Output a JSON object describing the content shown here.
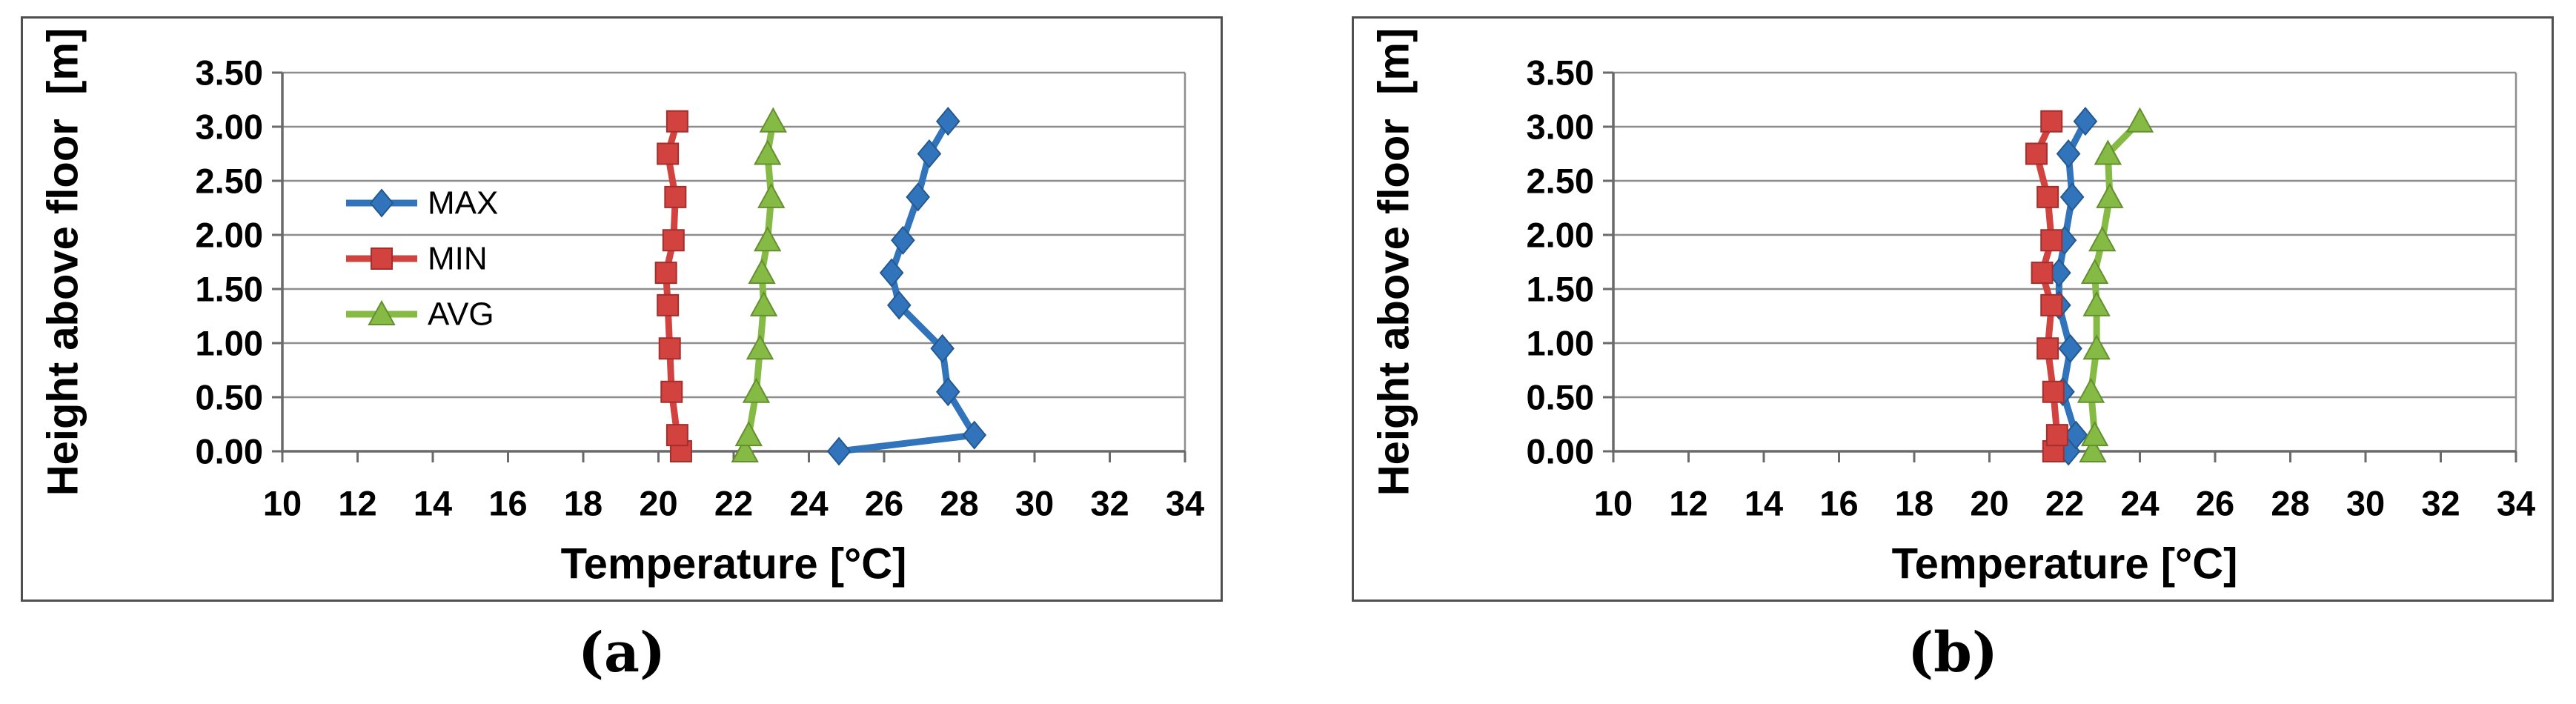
{
  "captions": {
    "a": "(a)",
    "b": "(b)"
  },
  "colors": {
    "max": "#3274BB",
    "max_edge": "#24598F",
    "min": "#D2423F",
    "min_edge": "#A32F2D",
    "avg": "#85BB44",
    "avg_edge": "#648F2F",
    "grid": "#8E8E8E",
    "axis": "#6A6A6A",
    "text": "#000000",
    "panel_border": "#4F4F4F"
  },
  "chart_data": [
    {
      "panel": "a",
      "type": "line",
      "xlabel": "Temperature [°C]",
      "ylabel": "Height above floor  [m]",
      "xlim": [
        10,
        34
      ],
      "ylim": [
        0,
        3.5
      ],
      "x_ticks": [
        10,
        12,
        14,
        16,
        18,
        20,
        22,
        24,
        26,
        28,
        30,
        32,
        34
      ],
      "y_ticks": [
        0,
        0.5,
        1,
        1.5,
        2,
        2.5,
        3,
        3.5
      ],
      "y_tick_labels": [
        "0.00",
        "0.50",
        "1.00",
        "1.50",
        "2.00",
        "2.50",
        "3.00",
        "3.50"
      ],
      "grid": "horizontal",
      "legend": {
        "show": true,
        "position": "left-center"
      },
      "heights": [
        0.0,
        0.15,
        0.55,
        0.95,
        1.35,
        1.65,
        1.95,
        2.35,
        2.75,
        3.05
      ],
      "series": [
        {
          "name": "MAX",
          "marker": "diamond",
          "color_key": "max",
          "temps": [
            24.8,
            28.4,
            27.7,
            27.55,
            26.4,
            26.2,
            26.5,
            26.9,
            27.2,
            27.7
          ]
        },
        {
          "name": "MIN",
          "marker": "square",
          "color_key": "min",
          "temps": [
            20.6,
            20.5,
            20.35,
            20.3,
            20.25,
            20.2,
            20.4,
            20.45,
            20.25,
            20.5
          ]
        },
        {
          "name": "AVG",
          "marker": "triangle",
          "color_key": "avg",
          "temps": [
            22.3,
            22.4,
            22.6,
            22.7,
            22.8,
            22.75,
            22.9,
            23.0,
            22.9,
            23.05
          ]
        }
      ]
    },
    {
      "panel": "b",
      "type": "line",
      "xlabel": "Temperature [°C]",
      "ylabel": "Height above floor  [m]",
      "xlim": [
        10,
        34
      ],
      "ylim": [
        0,
        3.5
      ],
      "x_ticks": [
        10,
        12,
        14,
        16,
        18,
        20,
        22,
        24,
        26,
        28,
        30,
        32,
        34
      ],
      "y_ticks": [
        0,
        0.5,
        1,
        1.5,
        2,
        2.5,
        3,
        3.5
      ],
      "y_tick_labels": [
        "0.00",
        "0.50",
        "1.00",
        "1.50",
        "2.00",
        "2.50",
        "3.00",
        "3.50"
      ],
      "grid": "horizontal",
      "legend": {
        "show": false
      },
      "heights": [
        0.0,
        0.15,
        0.55,
        0.95,
        1.35,
        1.65,
        1.95,
        2.35,
        2.75,
        3.05
      ],
      "series": [
        {
          "name": "MAX",
          "marker": "diamond",
          "color_key": "max",
          "temps": [
            22.1,
            22.3,
            21.95,
            22.15,
            21.85,
            21.85,
            22.0,
            22.2,
            22.1,
            22.55
          ]
        },
        {
          "name": "MIN",
          "marker": "square",
          "color_key": "min",
          "temps": [
            21.7,
            21.8,
            21.7,
            21.55,
            21.65,
            21.4,
            21.65,
            21.55,
            21.25,
            21.65
          ]
        },
        {
          "name": "AVG",
          "marker": "triangle",
          "color_key": "avg",
          "temps": [
            22.75,
            22.8,
            22.7,
            22.85,
            22.85,
            22.8,
            23.0,
            23.2,
            23.15,
            24.0
          ]
        }
      ]
    }
  ]
}
